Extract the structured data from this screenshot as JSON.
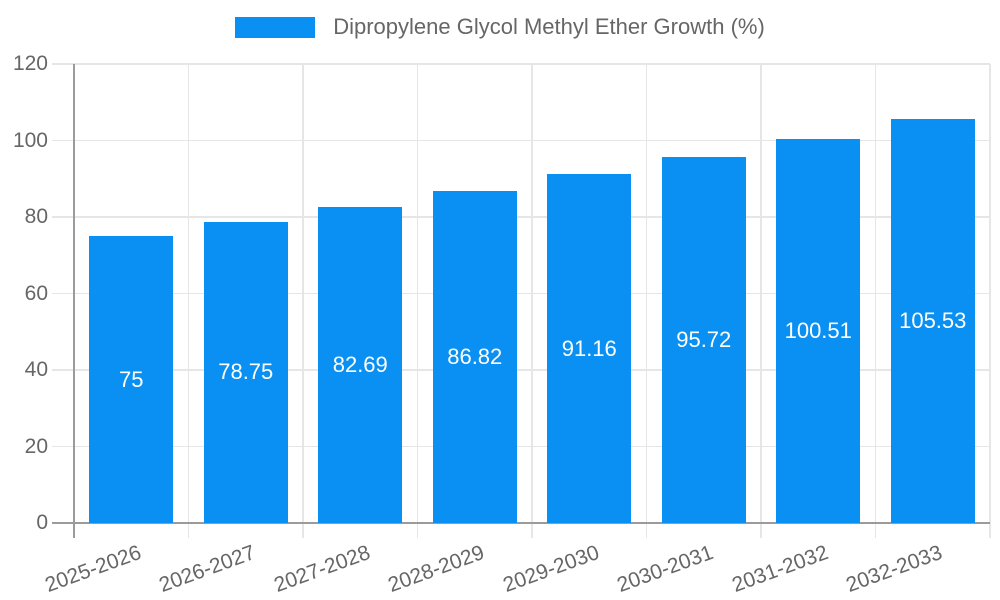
{
  "chart_data": {
    "type": "bar",
    "title": "Dipropylene Glycol Methyl Ether Growth (%)",
    "categories": [
      "2025-2026",
      "2026-2027",
      "2027-2028",
      "2028-2029",
      "2029-2030",
      "2030-2031",
      "2031-2032",
      "2032-2033"
    ],
    "values": [
      75,
      78.75,
      82.69,
      86.82,
      91.16,
      95.72,
      100.51,
      105.53
    ],
    "value_labels": [
      "75",
      "78.75",
      "82.69",
      "86.82",
      "91.16",
      "95.72",
      "100.51",
      "105.53"
    ],
    "y_ticks": [
      0,
      20,
      40,
      60,
      80,
      100,
      120
    ],
    "ylim": [
      0,
      120
    ],
    "xlabel": "",
    "ylabel": "",
    "legend_position": "top",
    "grid": true,
    "colors": {
      "bar": "#0990f2",
      "bar_value_text": "#ffffff",
      "gridline": "#e6e6e6",
      "axis_line": "#9b9b9b",
      "tick_text": "#666666",
      "background": "#ffffff"
    }
  }
}
